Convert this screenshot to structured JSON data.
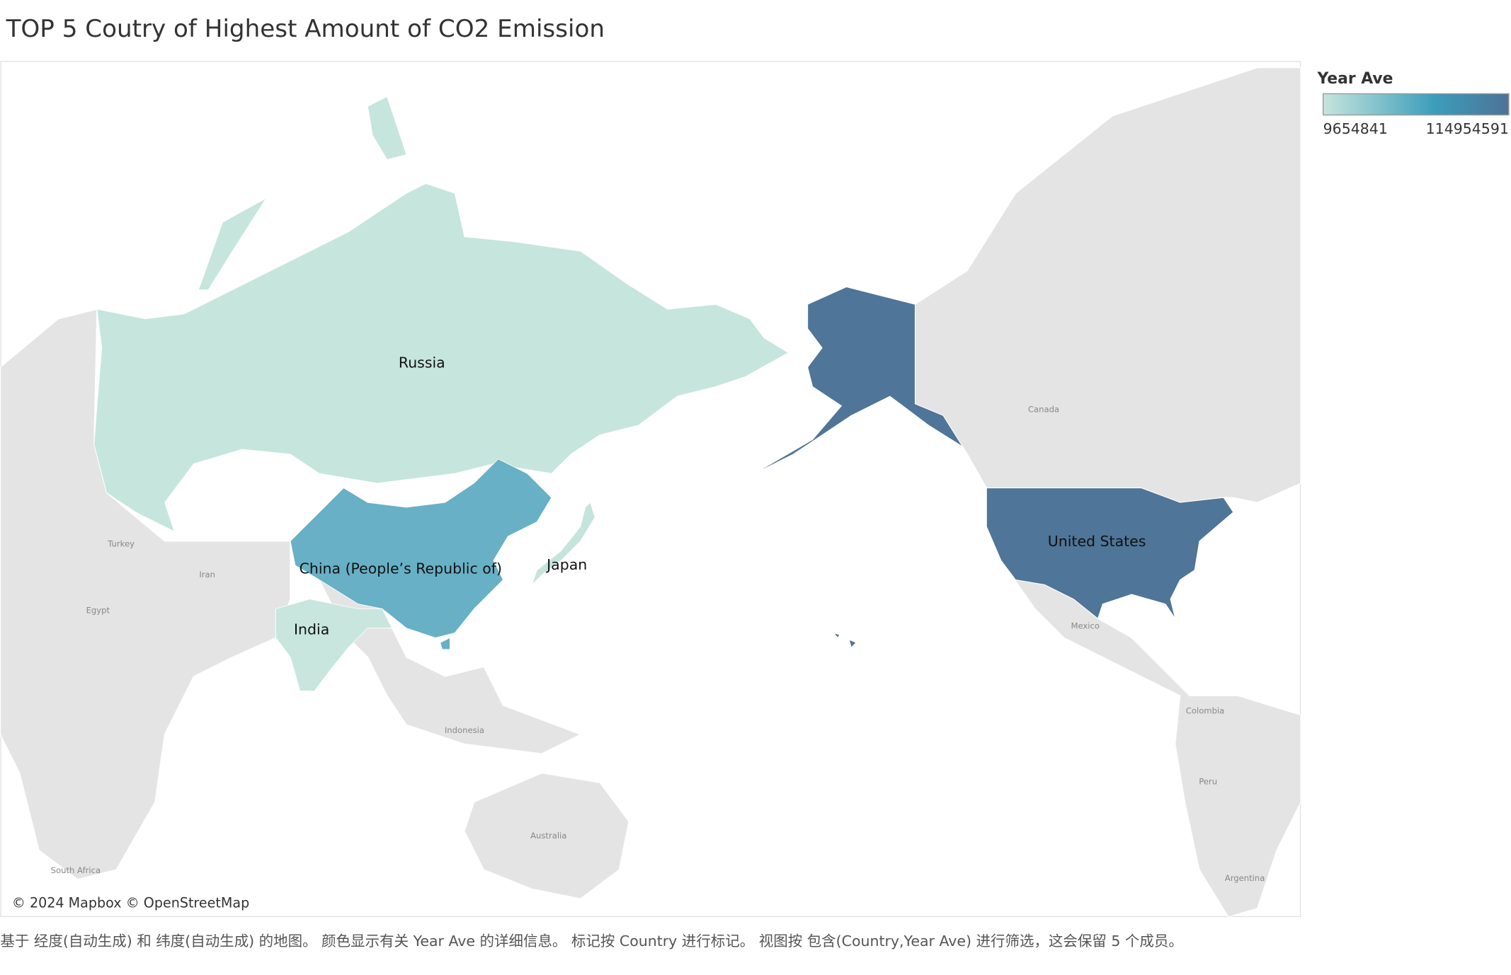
{
  "title": "TOP 5 Coutry of Highest Amount of CO2 Emission",
  "legend": {
    "title": "Year Ave",
    "min_label": "9654841",
    "max_label": "114954591",
    "color_low": "#c6e5dd",
    "color_mid": "#3c9dbb",
    "color_high": "#4e7296"
  },
  "countries": [
    {
      "name": "Russia",
      "color": "#c6e5dd"
    },
    {
      "name": "China (People’s Republic of)",
      "color": "#67b0c6"
    },
    {
      "name": "India",
      "color": "#c8e6de"
    },
    {
      "name": "Japan",
      "color": "#c4e4dc"
    },
    {
      "name": "United States",
      "color": "#4f7598"
    }
  ],
  "base_labels": [
    "Canada",
    "Mexico",
    "Turkey",
    "Iran",
    "Egypt",
    "Indonesia",
    "Australia",
    "South Africa",
    "Colombia",
    "Peru",
    "Argentina"
  ],
  "attribution": "© 2024 Mapbox © OpenStreetMap",
  "caption": "基于 经度(自动生成) 和 纬度(自动生成) 的地图。 颜色显示有关 Year Ave 的详细信息。 标记按 Country 进行标记。 视图按 包含(Country,Year Ave) 进行筛选，这会保留 5 个成员。"
}
